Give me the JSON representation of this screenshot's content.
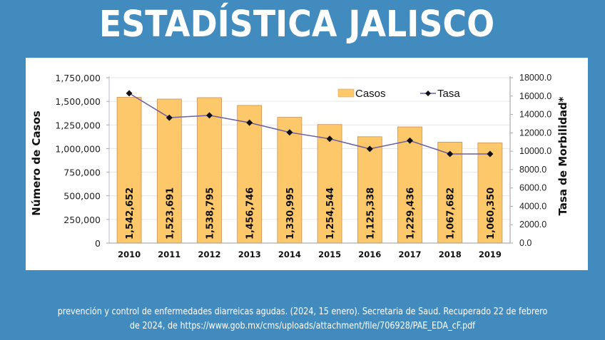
{
  "header": {
    "title": "ESTADÍSTICA JALISCO"
  },
  "citation": {
    "line1": "prevención y control de enfermedades diarreicas agudas. (2024, 15 enero). Secretaria de Saud. Recuperado 22 de febrero",
    "line2": "de 2024, de https://www.gob.mx/cms/uploads/attachment/file/706928/PAE_EDA_cF.pdf"
  },
  "colors": {
    "background": "#428bbf",
    "bar_fill": "#fcc86a",
    "bar_stroke": "#c9905a",
    "line": "#6b5fa6",
    "marker": "#111111",
    "grid": "#e6e6e6"
  },
  "chart_data": {
    "type": "bar",
    "title": "",
    "categories": [
      "2010",
      "2011",
      "2012",
      "2013",
      "2014",
      "2015",
      "2016",
      "2017",
      "2018",
      "2019"
    ],
    "series": [
      {
        "name": "Casos",
        "type": "bar",
        "axis": "left",
        "values": [
          1542652,
          1523691,
          1538795,
          1456746,
          1330995,
          1254544,
          1125338,
          1229436,
          1067682,
          1060350
        ],
        "labels": [
          "1,542,652",
          "1,523,691",
          "1,538,795",
          "1,456,746",
          "1,330,995",
          "1,254,544",
          "1,125,338",
          "1,229,436",
          "1,067,682",
          "1,060,350"
        ]
      },
      {
        "name": "Tasa",
        "type": "line",
        "axis": "right",
        "values": [
          16300,
          13650,
          13900,
          13100,
          12050,
          11350,
          10250,
          11150,
          9700,
          9700
        ]
      }
    ],
    "xlabel": "",
    "ylabel": "Número de Casos",
    "y2label": "Tasa de Morbilidad*",
    "ylim": [
      0,
      1750000
    ],
    "y2lim": [
      0,
      18000
    ],
    "yticks": [
      "0",
      "250,000",
      "500,000",
      "750,000",
      "1,000,000",
      "1,250,000",
      "1,500,000",
      "1,750,000"
    ],
    "ytick_values": [
      0,
      250000,
      500000,
      750000,
      1000000,
      1250000,
      1500000,
      1750000
    ],
    "y2ticks": [
      "0.0",
      "2000.0",
      "4000.0",
      "6000.0",
      "8000.0",
      "10000.0",
      "12000.0",
      "14000.0",
      "16000.0",
      "18000.0"
    ],
    "y2tick_values": [
      0,
      2000,
      4000,
      6000,
      8000,
      10000,
      12000,
      14000,
      16000,
      18000
    ],
    "grid": true,
    "legend": "top-right"
  }
}
